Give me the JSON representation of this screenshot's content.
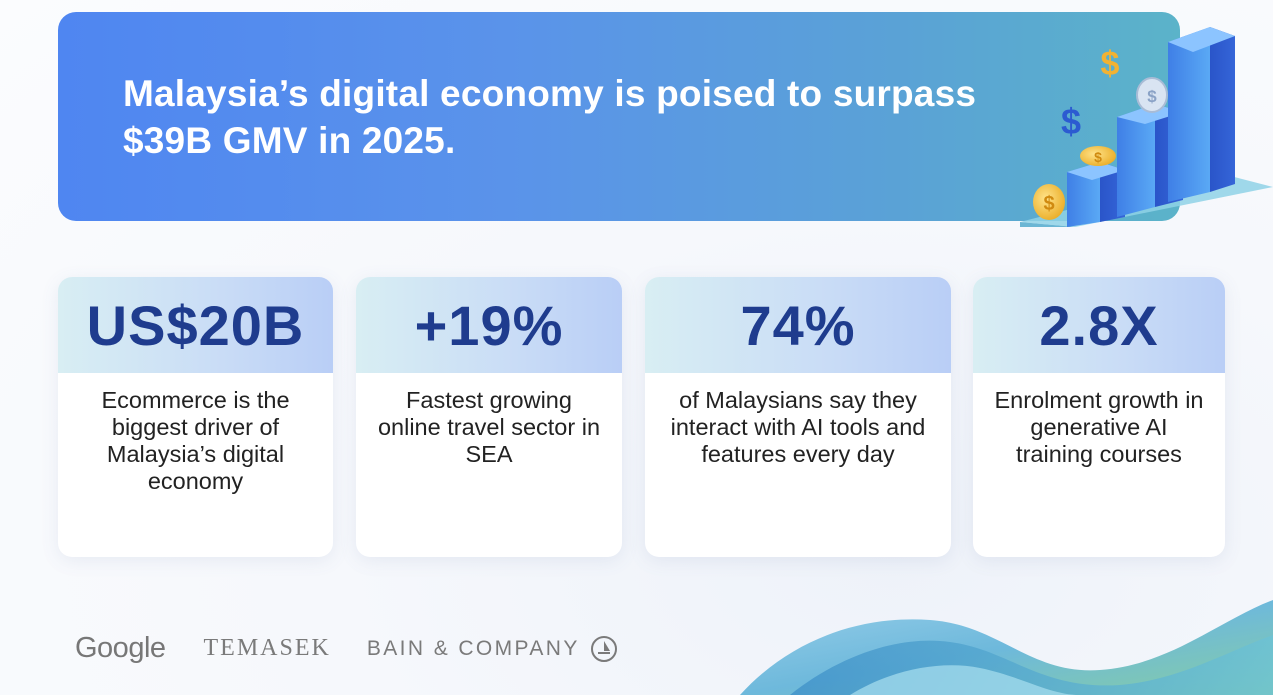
{
  "banner": {
    "headline_line1": "Malaysia’s digital economy is poised to surpass",
    "headline_line2": "$39B GMV in 2025."
  },
  "stats": [
    {
      "value": "US$20B",
      "description": "Ecommerce is the biggest driver of Malaysia’s digital economy"
    },
    {
      "value": "+19%",
      "description": "Fastest growing online travel sector in SEA"
    },
    {
      "value": "74%",
      "description": "of Malaysians say they interact with AI tools and features every day"
    },
    {
      "value": "2.8X",
      "description": "Enrolment growth in generative AI training courses"
    }
  ],
  "footer": {
    "logo_google": "Google",
    "logo_temasek": "TEMASEK",
    "logo_bain": "BAIN & COMPANY"
  },
  "colors": {
    "banner_start": "#4f86f1",
    "banner_end": "#5bb3c9",
    "stat_text": "#1f3c8e",
    "card_header_start": "#d8eef3",
    "card_header_end": "#b9cef6"
  },
  "icons": [
    "bar-chart-coins-illustration",
    "bain-logo-icon",
    "decorative-wave"
  ]
}
